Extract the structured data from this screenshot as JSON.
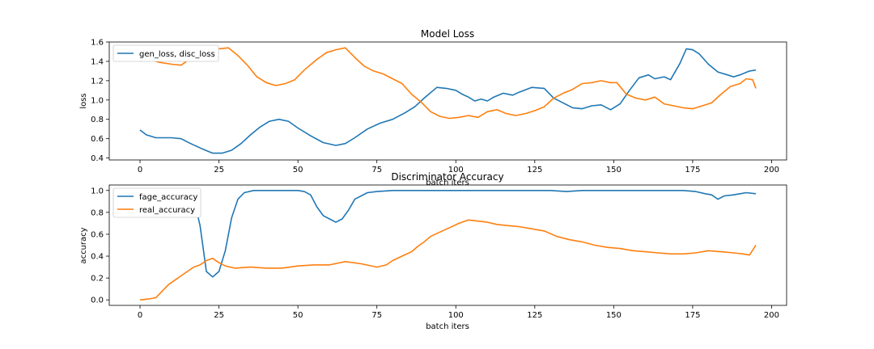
{
  "chart_data": [
    {
      "type": "line",
      "title": "Model Loss",
      "xlabel": "batch iters",
      "ylabel": "loss",
      "xlim": [
        -9.75,
        204.75
      ],
      "ylim": [
        0.38,
        1.6
      ],
      "xticks": [
        0,
        25,
        50,
        75,
        100,
        125,
        150,
        175,
        200
      ],
      "yticks": [
        0.4,
        0.6,
        0.8,
        1.0,
        1.2,
        1.4,
        1.6
      ],
      "ytick_labels": [
        "0.4",
        "0.6",
        "0.8",
        "1.0",
        "1.2",
        "1.4",
        "1.6"
      ],
      "grid": false,
      "legend": {
        "placement": "upper-left",
        "entries": [
          "gen_loss, disc_loss"
        ]
      },
      "series": [
        {
          "name": "gen_loss, disc_loss",
          "color": "#1f77b4",
          "points": [
            [
              0,
              0.69
            ],
            [
              2,
              0.64
            ],
            [
              5,
              0.61
            ],
            [
              10,
              0.61
            ],
            [
              13,
              0.6
            ],
            [
              16,
              0.55
            ],
            [
              20,
              0.49
            ],
            [
              23,
              0.45
            ],
            [
              26,
              0.45
            ],
            [
              29,
              0.48
            ],
            [
              32,
              0.55
            ],
            [
              35,
              0.64
            ],
            [
              38,
              0.72
            ],
            [
              41,
              0.78
            ],
            [
              44,
              0.8
            ],
            [
              47,
              0.78
            ],
            [
              50,
              0.71
            ],
            [
              54,
              0.63
            ],
            [
              58,
              0.56
            ],
            [
              62,
              0.53
            ],
            [
              65,
              0.55
            ],
            [
              68,
              0.61
            ],
            [
              72,
              0.7
            ],
            [
              76,
              0.76
            ],
            [
              80,
              0.8
            ],
            [
              84,
              0.87
            ],
            [
              87,
              0.93
            ],
            [
              90,
              1.02
            ],
            [
              94,
              1.13
            ],
            [
              97,
              1.12
            ],
            [
              100,
              1.1
            ],
            [
              102,
              1.06
            ],
            [
              104,
              1.03
            ],
            [
              106,
              0.99
            ],
            [
              108,
              1.01
            ],
            [
              110,
              0.99
            ],
            [
              112,
              1.03
            ],
            [
              115,
              1.07
            ],
            [
              118,
              1.05
            ],
            [
              120,
              1.08
            ],
            [
              124,
              1.13
            ],
            [
              128,
              1.12
            ],
            [
              131,
              1.02
            ],
            [
              134,
              0.97
            ],
            [
              137,
              0.92
            ],
            [
              140,
              0.91
            ],
            [
              143,
              0.94
            ],
            [
              146,
              0.95
            ],
            [
              149,
              0.9
            ],
            [
              152,
              0.96
            ],
            [
              155,
              1.1
            ],
            [
              158,
              1.23
            ],
            [
              161,
              1.26
            ],
            [
              163,
              1.22
            ],
            [
              166,
              1.24
            ],
            [
              168,
              1.21
            ],
            [
              171,
              1.38
            ],
            [
              173,
              1.53
            ],
            [
              175,
              1.52
            ],
            [
              177,
              1.48
            ],
            [
              180,
              1.37
            ],
            [
              183,
              1.29
            ],
            [
              186,
              1.26
            ],
            [
              188,
              1.24
            ],
            [
              190,
              1.26
            ],
            [
              193,
              1.3
            ],
            [
              195,
              1.31
            ]
          ]
        },
        {
          "name": "",
          "color": "#ff7f0e",
          "points": [
            [
              0,
              1.4
            ],
            [
              3,
              1.42
            ],
            [
              6,
              1.39
            ],
            [
              10,
              1.37
            ],
            [
              13,
              1.36
            ],
            [
              16,
              1.43
            ],
            [
              19,
              1.48
            ],
            [
              22,
              1.5
            ],
            [
              25,
              1.53
            ],
            [
              28,
              1.54
            ],
            [
              31,
              1.46
            ],
            [
              34,
              1.36
            ],
            [
              37,
              1.24
            ],
            [
              40,
              1.18
            ],
            [
              43,
              1.15
            ],
            [
              46,
              1.17
            ],
            [
              49,
              1.21
            ],
            [
              52,
              1.31
            ],
            [
              56,
              1.42
            ],
            [
              59,
              1.49
            ],
            [
              62,
              1.52
            ],
            [
              65,
              1.54
            ],
            [
              68,
              1.44
            ],
            [
              71,
              1.35
            ],
            [
              74,
              1.3
            ],
            [
              77,
              1.27
            ],
            [
              80,
              1.22
            ],
            [
              83,
              1.17
            ],
            [
              86,
              1.06
            ],
            [
              89,
              0.98
            ],
            [
              92,
              0.88
            ],
            [
              95,
              0.83
            ],
            [
              98,
              0.81
            ],
            [
              101,
              0.82
            ],
            [
              104,
              0.84
            ],
            [
              107,
              0.82
            ],
            [
              110,
              0.88
            ],
            [
              113,
              0.9
            ],
            [
              116,
              0.86
            ],
            [
              119,
              0.84
            ],
            [
              122,
              0.86
            ],
            [
              125,
              0.89
            ],
            [
              128,
              0.93
            ],
            [
              131,
              1.02
            ],
            [
              134,
              1.07
            ],
            [
              137,
              1.11
            ],
            [
              140,
              1.17
            ],
            [
              143,
              1.18
            ],
            [
              146,
              1.2
            ],
            [
              149,
              1.18
            ],
            [
              151,
              1.18
            ],
            [
              154,
              1.06
            ],
            [
              157,
              1.02
            ],
            [
              160,
              1.0
            ],
            [
              163,
              1.03
            ],
            [
              166,
              0.96
            ],
            [
              169,
              0.94
            ],
            [
              172,
              0.92
            ],
            [
              175,
              0.91
            ],
            [
              178,
              0.94
            ],
            [
              181,
              0.97
            ],
            [
              184,
              1.06
            ],
            [
              187,
              1.14
            ],
            [
              190,
              1.17
            ],
            [
              192,
              1.22
            ],
            [
              194,
              1.21
            ],
            [
              195,
              1.12
            ]
          ]
        }
      ]
    },
    {
      "type": "line",
      "title": "Discriminator Accuracy",
      "xlabel": "batch iters",
      "ylabel": "accuracy",
      "xlim": [
        -9.75,
        204.75
      ],
      "ylim": [
        -0.05,
        1.05
      ],
      "xticks": [
        0,
        25,
        50,
        75,
        100,
        125,
        150,
        175,
        200
      ],
      "yticks": [
        0.0,
        0.2,
        0.4,
        0.6,
        0.8,
        1.0
      ],
      "ytick_labels": [
        "0.0",
        "0.2",
        "0.4",
        "0.6",
        "0.8",
        "1.0"
      ],
      "grid": false,
      "legend": {
        "placement": "upper-left",
        "entries": [
          "fage_accuracy",
          "real_accuracy"
        ]
      },
      "series": [
        {
          "name": "fage_accuracy",
          "color": "#1f77b4",
          "points": [
            [
              17,
              0.92
            ],
            [
              19,
              0.68
            ],
            [
              21,
              0.26
            ],
            [
              23,
              0.21
            ],
            [
              25,
              0.26
            ],
            [
              27,
              0.45
            ],
            [
              29,
              0.75
            ],
            [
              31,
              0.92
            ],
            [
              33,
              0.98
            ],
            [
              36,
              1.0
            ],
            [
              45,
              1.0
            ],
            [
              50,
              1.0
            ],
            [
              52,
              0.99
            ],
            [
              54,
              0.96
            ],
            [
              56,
              0.85
            ],
            [
              58,
              0.77
            ],
            [
              60,
              0.74
            ],
            [
              62,
              0.71
            ],
            [
              64,
              0.74
            ],
            [
              66,
              0.82
            ],
            [
              68,
              0.92
            ],
            [
              72,
              0.98
            ],
            [
              75,
              0.99
            ],
            [
              80,
              1.0
            ],
            [
              95,
              1.0
            ],
            [
              130,
              1.0
            ],
            [
              135,
              0.99
            ],
            [
              140,
              1.0
            ],
            [
              160,
              1.0
            ],
            [
              172,
              1.0
            ],
            [
              176,
              0.99
            ],
            [
              179,
              0.97
            ],
            [
              181,
              0.96
            ],
            [
              183,
              0.92
            ],
            [
              185,
              0.95
            ],
            [
              188,
              0.96
            ],
            [
              190,
              0.97
            ],
            [
              192,
              0.98
            ],
            [
              195,
              0.97
            ]
          ]
        },
        {
          "name": "real_accuracy",
          "color": "#ff7f0e",
          "points": [
            [
              0,
              0.0
            ],
            [
              3,
              0.01
            ],
            [
              5,
              0.02
            ],
            [
              7,
              0.08
            ],
            [
              9,
              0.14
            ],
            [
              11,
              0.18
            ],
            [
              13,
              0.22
            ],
            [
              15,
              0.26
            ],
            [
              17,
              0.3
            ],
            [
              19,
              0.32
            ],
            [
              21,
              0.36
            ],
            [
              23,
              0.38
            ],
            [
              25,
              0.34
            ],
            [
              27,
              0.31
            ],
            [
              30,
              0.29
            ],
            [
              35,
              0.3
            ],
            [
              40,
              0.29
            ],
            [
              45,
              0.29
            ],
            [
              50,
              0.31
            ],
            [
              55,
              0.32
            ],
            [
              60,
              0.32
            ],
            [
              65,
              0.35
            ],
            [
              70,
              0.33
            ],
            [
              75,
              0.3
            ],
            [
              78,
              0.32
            ],
            [
              80,
              0.36
            ],
            [
              83,
              0.4
            ],
            [
              86,
              0.44
            ],
            [
              88,
              0.49
            ],
            [
              90,
              0.53
            ],
            [
              92,
              0.58
            ],
            [
              95,
              0.62
            ],
            [
              98,
              0.66
            ],
            [
              101,
              0.7
            ],
            [
              104,
              0.73
            ],
            [
              107,
              0.72
            ],
            [
              110,
              0.71
            ],
            [
              113,
              0.69
            ],
            [
              116,
              0.68
            ],
            [
              120,
              0.67
            ],
            [
              124,
              0.65
            ],
            [
              128,
              0.63
            ],
            [
              132,
              0.58
            ],
            [
              136,
              0.55
            ],
            [
              140,
              0.53
            ],
            [
              144,
              0.5
            ],
            [
              148,
              0.48
            ],
            [
              152,
              0.47
            ],
            [
              156,
              0.45
            ],
            [
              160,
              0.44
            ],
            [
              164,
              0.43
            ],
            [
              168,
              0.42
            ],
            [
              172,
              0.42
            ],
            [
              176,
              0.43
            ],
            [
              180,
              0.45
            ],
            [
              184,
              0.44
            ],
            [
              188,
              0.43
            ],
            [
              191,
              0.42
            ],
            [
              193,
              0.41
            ],
            [
              195,
              0.5
            ]
          ]
        }
      ]
    }
  ]
}
